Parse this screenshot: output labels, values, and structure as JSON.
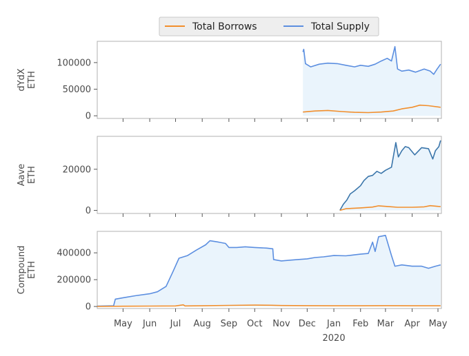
{
  "legend": {
    "items": [
      {
        "label": "Total Borrows",
        "color": "#f28e2b"
      },
      {
        "label": "Total Supply",
        "color": "#5b8ee0"
      }
    ]
  },
  "chart_data": {
    "type": "line",
    "x_axis": {
      "range": [
        "2019-04-01",
        "2020-05-05"
      ],
      "ticks": [
        {
          "date": "2019-05-01",
          "label": "May"
        },
        {
          "date": "2019-06-01",
          "label": "Jun"
        },
        {
          "date": "2019-07-01",
          "label": "Jul"
        },
        {
          "date": "2019-08-01",
          "label": "Aug"
        },
        {
          "date": "2019-09-01",
          "label": "Sep"
        },
        {
          "date": "2019-10-01",
          "label": "Oct"
        },
        {
          "date": "2019-11-01",
          "label": "Nov"
        },
        {
          "date": "2019-12-01",
          "label": "Dec"
        },
        {
          "date": "2020-01-01",
          "label": "Jan"
        },
        {
          "date": "2020-02-01",
          "label": "Feb"
        },
        {
          "date": "2020-03-01",
          "label": "Mar"
        },
        {
          "date": "2020-04-01",
          "label": "Apr"
        },
        {
          "date": "2020-05-01",
          "label": "May"
        }
      ],
      "year_label": "2020",
      "year_label_date": "2020-01-01"
    },
    "panels": [
      {
        "id": "dydx",
        "ylabel": [
          "dYdX",
          "ETH"
        ],
        "ylim": [
          -5000,
          140000
        ],
        "yticks": [
          0,
          50000,
          100000
        ],
        "ytick_labels": [
          "0",
          "50000",
          "100000"
        ],
        "fill_supply": true,
        "supply_color": "#5b8ee0",
        "borrows_color": "#f28e2b",
        "supply": [
          [
            "2019-11-26",
            120000
          ],
          [
            "2019-11-27",
            125000
          ],
          [
            "2019-11-29",
            98000
          ],
          [
            "2019-12-05",
            92000
          ],
          [
            "2019-12-15",
            97000
          ],
          [
            "2019-12-25",
            99000
          ],
          [
            "2020-01-05",
            98000
          ],
          [
            "2020-01-15",
            95000
          ],
          [
            "2020-01-25",
            92000
          ],
          [
            "2020-02-01",
            95000
          ],
          [
            "2020-02-10",
            93000
          ],
          [
            "2020-02-18",
            97000
          ],
          [
            "2020-02-25",
            103000
          ],
          [
            "2020-03-03",
            108000
          ],
          [
            "2020-03-08",
            103000
          ],
          [
            "2020-03-12",
            130000
          ],
          [
            "2020-03-15",
            88000
          ],
          [
            "2020-03-20",
            84000
          ],
          [
            "2020-03-28",
            86000
          ],
          [
            "2020-04-05",
            82000
          ],
          [
            "2020-04-15",
            88000
          ],
          [
            "2020-04-22",
            84000
          ],
          [
            "2020-04-26",
            78000
          ],
          [
            "2020-04-30",
            88000
          ],
          [
            "2020-05-04",
            97000
          ]
        ],
        "borrows": [
          [
            "2019-11-26",
            7000
          ],
          [
            "2019-12-10",
            9000
          ],
          [
            "2019-12-25",
            10000
          ],
          [
            "2020-01-10",
            8000
          ],
          [
            "2020-01-25",
            6500
          ],
          [
            "2020-02-10",
            6000
          ],
          [
            "2020-02-25",
            7000
          ],
          [
            "2020-03-10",
            9000
          ],
          [
            "2020-03-20",
            13000
          ],
          [
            "2020-04-01",
            16000
          ],
          [
            "2020-04-10",
            20000
          ],
          [
            "2020-04-20",
            19000
          ],
          [
            "2020-05-04",
            16000
          ]
        ]
      },
      {
        "id": "aave",
        "ylabel": [
          "Aave",
          "ETH"
        ],
        "ylim": [
          -1500,
          36000
        ],
        "yticks": [
          0,
          20000
        ],
        "ytick_labels": [
          "0",
          "20000"
        ],
        "fill_supply": true,
        "supply_color": "#3a75aa",
        "borrows_color": "#f28e2b",
        "supply": [
          [
            "2020-01-08",
            0
          ],
          [
            "2020-01-12",
            3000
          ],
          [
            "2020-01-16",
            5000
          ],
          [
            "2020-01-20",
            8000
          ],
          [
            "2020-01-25",
            9500
          ],
          [
            "2020-02-01",
            12000
          ],
          [
            "2020-02-05",
            14500
          ],
          [
            "2020-02-10",
            16500
          ],
          [
            "2020-02-15",
            17000
          ],
          [
            "2020-02-20",
            19000
          ],
          [
            "2020-02-25",
            18000
          ],
          [
            "2020-03-01",
            19500
          ],
          [
            "2020-03-08",
            21000
          ],
          [
            "2020-03-13",
            33000
          ],
          [
            "2020-03-16",
            26000
          ],
          [
            "2020-03-20",
            29000
          ],
          [
            "2020-03-24",
            31000
          ],
          [
            "2020-03-28",
            30500
          ],
          [
            "2020-04-04",
            27000
          ],
          [
            "2020-04-12",
            30500
          ],
          [
            "2020-04-20",
            30000
          ],
          [
            "2020-04-25",
            25000
          ],
          [
            "2020-04-28",
            29000
          ],
          [
            "2020-05-02",
            31000
          ],
          [
            "2020-05-04",
            34000
          ]
        ],
        "borrows": [
          [
            "2020-01-08",
            0
          ],
          [
            "2020-01-15",
            800
          ],
          [
            "2020-02-01",
            1200
          ],
          [
            "2020-02-15",
            1600
          ],
          [
            "2020-02-22",
            2200
          ],
          [
            "2020-03-05",
            1800
          ],
          [
            "2020-03-15",
            1500
          ],
          [
            "2020-04-01",
            1500
          ],
          [
            "2020-04-15",
            1700
          ],
          [
            "2020-04-22",
            2300
          ],
          [
            "2020-05-04",
            1800
          ]
        ]
      },
      {
        "id": "compound",
        "ylabel": [
          "Compound",
          "ETH"
        ],
        "ylim": [
          -15000,
          560000
        ],
        "yticks": [
          0,
          200000,
          400000
        ],
        "ytick_labels": [
          "0",
          "200000",
          "400000"
        ],
        "fill_supply": true,
        "supply_color": "#5b8ee0",
        "borrows_color": "#f28e2b",
        "supply": [
          [
            "2019-04-01",
            3000
          ],
          [
            "2019-04-20",
            5000
          ],
          [
            "2019-04-22",
            55000
          ],
          [
            "2019-05-01",
            65000
          ],
          [
            "2019-05-15",
            80000
          ],
          [
            "2019-06-01",
            95000
          ],
          [
            "2019-06-10",
            110000
          ],
          [
            "2019-06-20",
            150000
          ],
          [
            "2019-06-28",
            260000
          ],
          [
            "2019-07-05",
            360000
          ],
          [
            "2019-07-15",
            380000
          ],
          [
            "2019-07-25",
            420000
          ],
          [
            "2019-08-05",
            460000
          ],
          [
            "2019-08-10",
            490000
          ],
          [
            "2019-08-20",
            480000
          ],
          [
            "2019-08-28",
            470000
          ],
          [
            "2019-09-01",
            440000
          ],
          [
            "2019-09-10",
            440000
          ],
          [
            "2019-09-20",
            445000
          ],
          [
            "2019-10-01",
            440000
          ],
          [
            "2019-10-15",
            435000
          ],
          [
            "2019-10-22",
            430000
          ],
          [
            "2019-10-23",
            350000
          ],
          [
            "2019-11-01",
            340000
          ],
          [
            "2019-11-10",
            345000
          ],
          [
            "2019-11-20",
            350000
          ],
          [
            "2019-12-01",
            355000
          ],
          [
            "2019-12-10",
            365000
          ],
          [
            "2019-12-20",
            370000
          ],
          [
            "2020-01-01",
            380000
          ],
          [
            "2020-01-15",
            378000
          ],
          [
            "2020-01-25",
            385000
          ],
          [
            "2020-02-01",
            390000
          ],
          [
            "2020-02-10",
            395000
          ],
          [
            "2020-02-15",
            480000
          ],
          [
            "2020-02-18",
            410000
          ],
          [
            "2020-02-22",
            520000
          ],
          [
            "2020-03-01",
            530000
          ],
          [
            "2020-03-08",
            380000
          ],
          [
            "2020-03-12",
            300000
          ],
          [
            "2020-03-20",
            310000
          ],
          [
            "2020-04-01",
            300000
          ],
          [
            "2020-04-12",
            300000
          ],
          [
            "2020-04-20",
            285000
          ],
          [
            "2020-04-28",
            300000
          ],
          [
            "2020-05-04",
            310000
          ]
        ],
        "borrows": [
          [
            "2019-04-01",
            500
          ],
          [
            "2019-05-01",
            2000
          ],
          [
            "2019-06-01",
            3000
          ],
          [
            "2019-07-01",
            4000
          ],
          [
            "2019-07-10",
            12000
          ],
          [
            "2019-07-12",
            4000
          ],
          [
            "2019-08-01",
            5000
          ],
          [
            "2019-09-01",
            8000
          ],
          [
            "2019-10-01",
            10000
          ],
          [
            "2019-10-20",
            9000
          ],
          [
            "2019-11-01",
            7000
          ],
          [
            "2019-12-01",
            6000
          ],
          [
            "2020-01-01",
            5000
          ],
          [
            "2020-02-01",
            5000
          ],
          [
            "2020-03-01",
            6000
          ],
          [
            "2020-04-01",
            5000
          ],
          [
            "2020-05-04",
            5000
          ]
        ]
      }
    ]
  }
}
